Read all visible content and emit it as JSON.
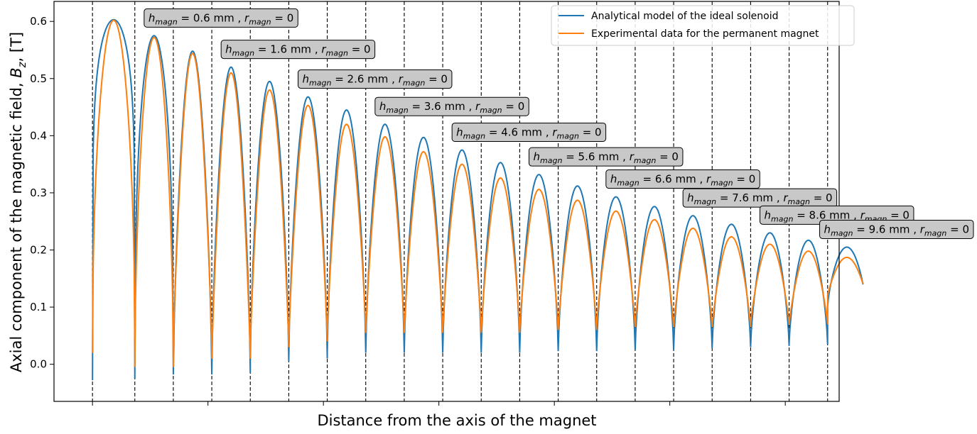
{
  "chart_data": {
    "type": "line",
    "title": "",
    "xlabel": "Distance from the axis of the magnet",
    "ylabel_main": "Axial component of the magnetic field, ",
    "ylabel_sym": "B",
    "ylabel_sub": "z",
    "ylabel_unit": ",   [T]",
    "ylim": [
      -0.065,
      0.635
    ],
    "xlim": [
      0,
      20.4
    ],
    "yticks": [
      {
        "value": 0.0,
        "label": "0.0"
      },
      {
        "value": 0.1,
        "label": "0.1"
      },
      {
        "value": 0.2,
        "label": "0.2"
      },
      {
        "value": 0.3,
        "label": "0.3"
      },
      {
        "value": 0.4,
        "label": "0.4"
      },
      {
        "value": 0.5,
        "label": "0.5"
      },
      {
        "value": 0.6,
        "label": "0.6"
      }
    ],
    "xticks": [
      1,
      4,
      7,
      10,
      13,
      16,
      19
    ],
    "grid": false,
    "legend_position": "top-right",
    "colors": {
      "analytical": "#1f77b4",
      "experimental": "#ff7f0e"
    },
    "boundaries": [
      1,
      2.1,
      3.1,
      4.1,
      5.1,
      6.1,
      7.1,
      8.1,
      9.1,
      10.1,
      11.1,
      12.1,
      13.1,
      14.1,
      15.1,
      16.1,
      17.1,
      18.1,
      19.1,
      20.1
    ],
    "segments": [
      {
        "peak_blue": 0.603,
        "peak_orange": 0.602,
        "base_blue": -0.028,
        "base_orange": 0.02
      },
      {
        "peak_blue": 0.575,
        "peak_orange": 0.572,
        "base_blue": -0.018,
        "base_orange": -0.005
      },
      {
        "peak_blue": 0.548,
        "peak_orange": 0.544,
        "base_blue": -0.018,
        "base_orange": 0.03
      },
      {
        "peak_blue": 0.52,
        "peak_orange": 0.51,
        "base_blue": -0.015,
        "base_orange": 0.01
      },
      {
        "peak_blue": 0.495,
        "peak_orange": 0.48,
        "base_blue": 0.005,
        "base_orange": 0.03
      },
      {
        "peak_blue": 0.468,
        "peak_orange": 0.453,
        "base_blue": 0.01,
        "base_orange": 0.04
      },
      {
        "peak_blue": 0.445,
        "peak_orange": 0.42,
        "base_blue": 0.02,
        "base_orange": 0.055
      },
      {
        "peak_blue": 0.42,
        "peak_orange": 0.398,
        "base_blue": 0.02,
        "base_orange": 0.055
      },
      {
        "peak_blue": 0.397,
        "peak_orange": 0.372,
        "base_blue": 0.02,
        "base_orange": 0.055
      },
      {
        "peak_blue": 0.375,
        "peak_orange": 0.35,
        "base_blue": 0.02,
        "base_orange": 0.055
      },
      {
        "peak_blue": 0.353,
        "peak_orange": 0.326,
        "base_blue": 0.02,
        "base_orange": 0.055
      },
      {
        "peak_blue": 0.332,
        "peak_orange": 0.306,
        "base_blue": 0.023,
        "base_orange": 0.06
      },
      {
        "peak_blue": 0.312,
        "peak_orange": 0.287,
        "base_blue": 0.023,
        "base_orange": 0.06
      },
      {
        "peak_blue": 0.293,
        "peak_orange": 0.268,
        "base_blue": 0.025,
        "base_orange": 0.065
      },
      {
        "peak_blue": 0.276,
        "peak_orange": 0.253,
        "base_blue": 0.025,
        "base_orange": 0.065
      },
      {
        "peak_blue": 0.26,
        "peak_orange": 0.238,
        "base_blue": 0.028,
        "base_orange": 0.065
      },
      {
        "peak_blue": 0.245,
        "peak_orange": 0.223,
        "base_blue": 0.03,
        "base_orange": 0.065
      },
      {
        "peak_blue": 0.23,
        "peak_orange": 0.21,
        "base_blue": 0.032,
        "base_orange": 0.07
      },
      {
        "peak_blue": 0.217,
        "peak_orange": 0.198,
        "base_blue": 0.035,
        "base_orange": 0.07
      },
      {
        "peak_blue": 0.205,
        "peak_orange": 0.187,
        "base_blue": 0.1,
        "base_orange": 0.12
      }
    ],
    "series": [
      {
        "name": "Analytical model of the ideal solenoid"
      },
      {
        "name": "Experimental data for the permanent magnet"
      }
    ],
    "annotations": [
      {
        "h_sym": "h",
        "h_sub": "magn",
        "mid": " = 0.6 mm , ",
        "r_sym": "r",
        "r_sub": "magn",
        "end": " = 0",
        "x": 2.6,
        "y": 0.575
      },
      {
        "h_sym": "h",
        "h_sub": "magn",
        "mid": " = 1.6 mm , ",
        "r_sym": "r",
        "r_sub": "magn",
        "end": " = 0",
        "x": 4.6,
        "y": 0.52
      },
      {
        "h_sym": "h",
        "h_sub": "magn",
        "mid": " = 2.6 mm , ",
        "r_sym": "r",
        "r_sub": "magn",
        "end": " = 0",
        "x": 6.6,
        "y": 0.468
      },
      {
        "h_sym": "h",
        "h_sub": "magn",
        "mid": " = 3.6 mm , ",
        "r_sym": "r",
        "r_sub": "magn",
        "end": " = 0",
        "x": 8.6,
        "y": 0.42
      },
      {
        "h_sym": "h",
        "h_sub": "magn",
        "mid": " = 4.6 mm , ",
        "r_sym": "r",
        "r_sub": "magn",
        "end": " = 0",
        "x": 10.6,
        "y": 0.375
      },
      {
        "h_sym": "h",
        "h_sub": "magn",
        "mid": " = 5.6 mm , ",
        "r_sym": "r",
        "r_sub": "magn",
        "end": " = 0",
        "x": 12.6,
        "y": 0.332
      },
      {
        "h_sym": "h",
        "h_sub": "magn",
        "mid": " = 6.6 mm , ",
        "r_sym": "r",
        "r_sub": "magn",
        "end": " = 0",
        "x": 14.6,
        "y": 0.293
      },
      {
        "h_sym": "h",
        "h_sub": "magn",
        "mid": " = 7.6 mm , ",
        "r_sym": "r",
        "r_sub": "magn",
        "end": " = 0",
        "x": 16.6,
        "y": 0.26
      },
      {
        "h_sym": "h",
        "h_sub": "magn",
        "mid": " = 8.6 mm , ",
        "r_sym": "r",
        "r_sub": "magn",
        "end": " = 0",
        "x": 18.6,
        "y": 0.23
      },
      {
        "h_sym": "h",
        "h_sub": "magn",
        "mid": " = 9.6 mm , ",
        "r_sym": "r",
        "r_sub": "magn",
        "end": " = 0",
        "x": 20.6,
        "y": 0.205
      }
    ]
  }
}
